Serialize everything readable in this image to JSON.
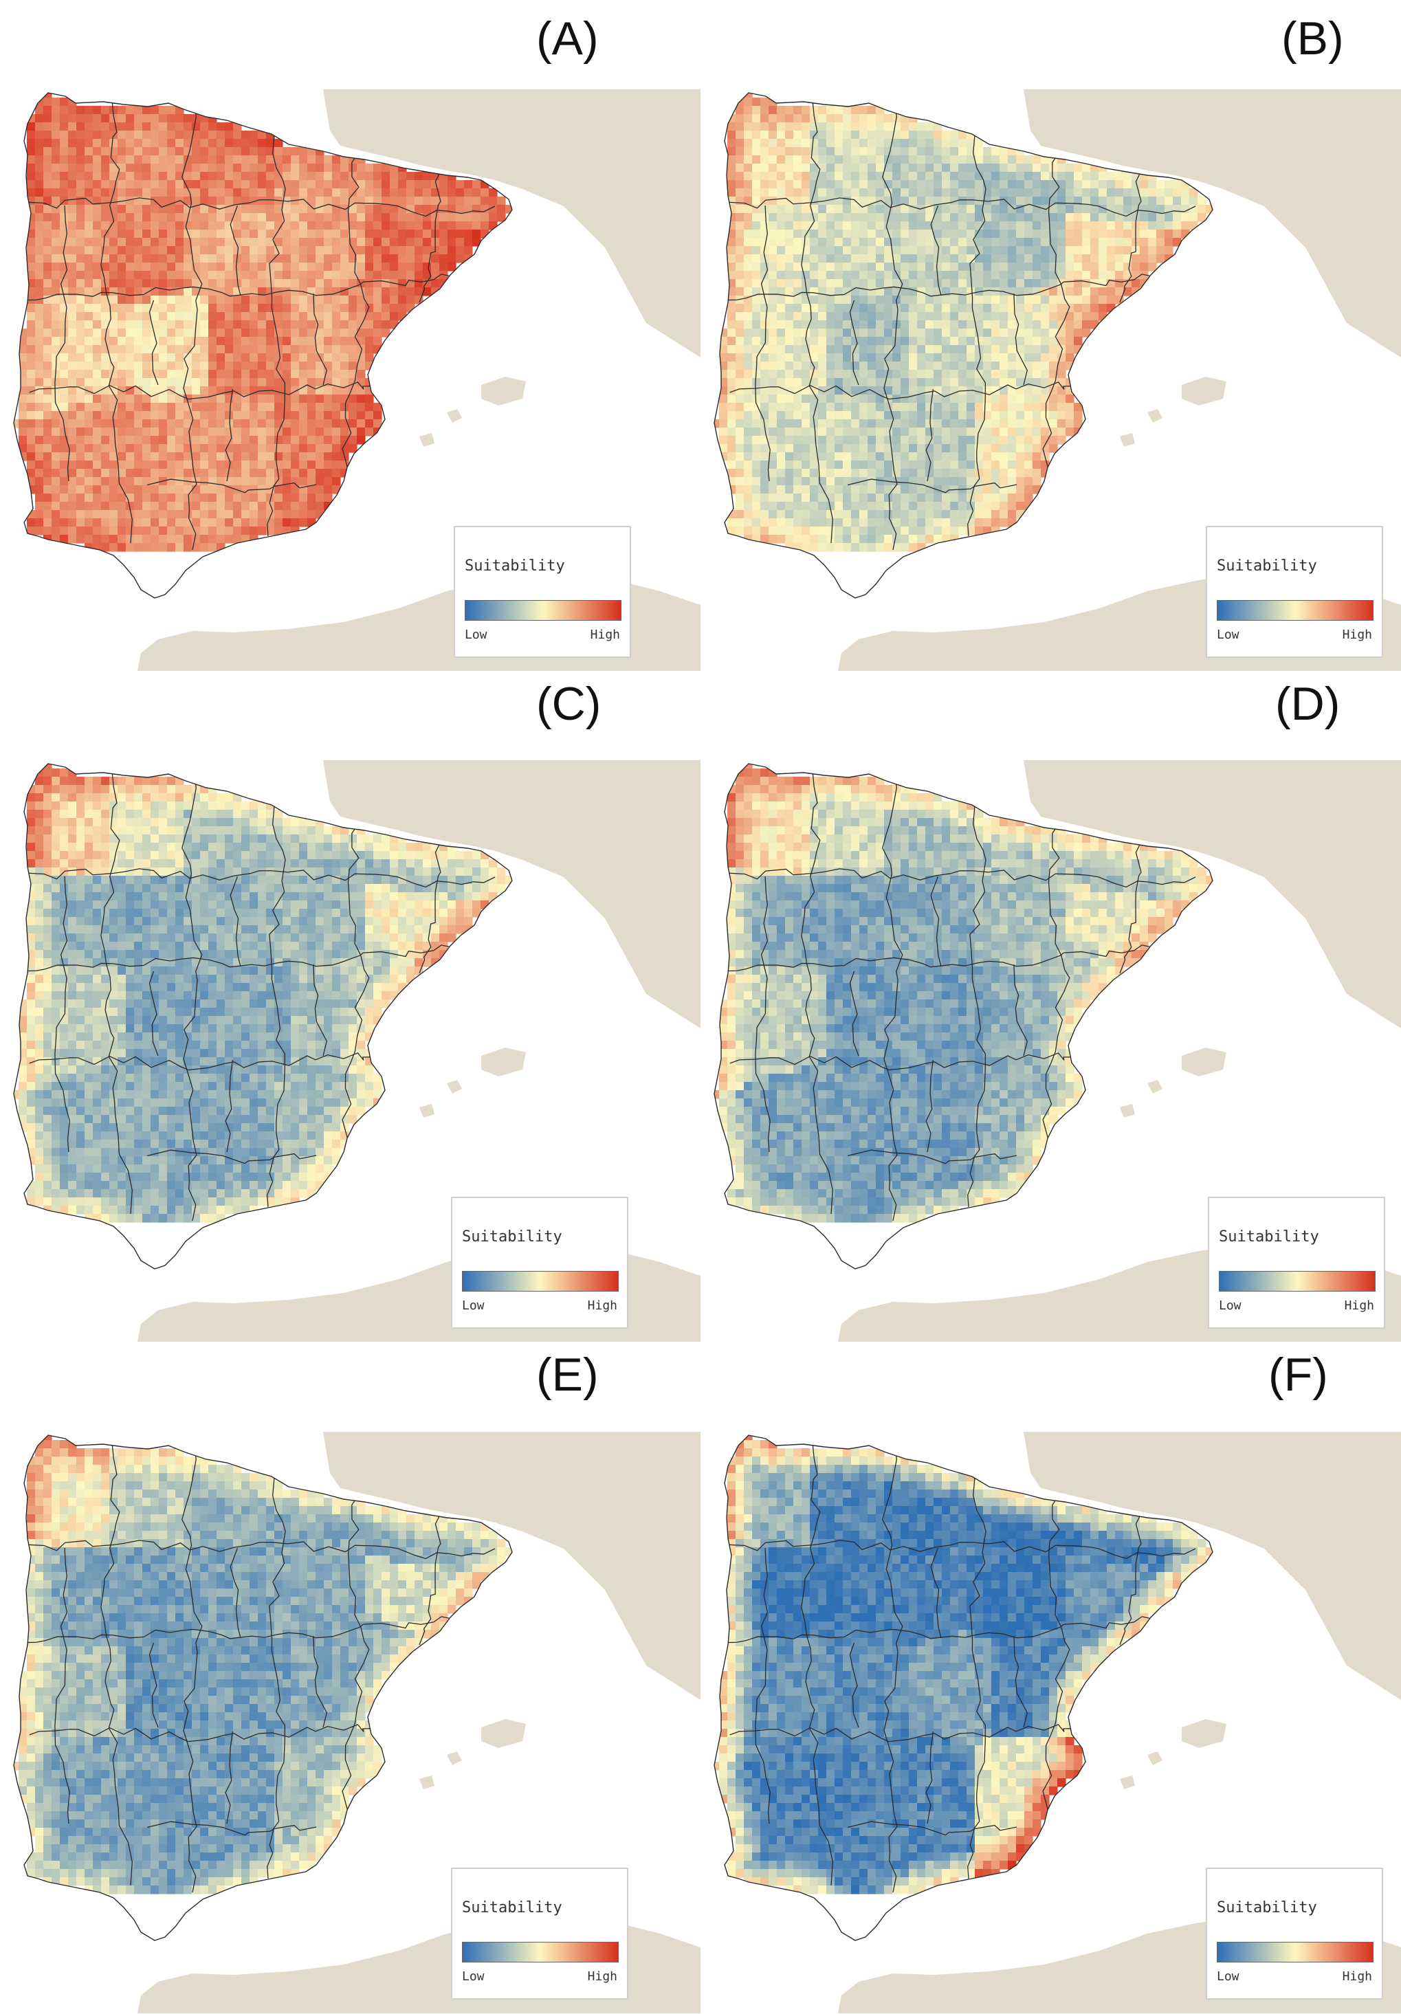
{
  "figure": {
    "land_color": "#e2dacb",
    "border_color": "#2a2a2a",
    "palette": {
      "low": "#2f6fb4",
      "mid": "#fdf6c0",
      "high": "#d7301f"
    },
    "legend": {
      "title": "Suitability",
      "low_label": "Low",
      "high_label": "High"
    }
  },
  "panels": [
    {
      "label": "(A)",
      "overall": 0.74,
      "coast_boost": 0.12,
      "regions": [
        0.8,
        0.75,
        0.8,
        0.7,
        0.78,
        0.72,
        0.8,
        0.68,
        0.7,
        0.85,
        0.6,
        0.55,
        0.8,
        0.7,
        0.78,
        0.75,
        0.72,
        0.8
      ]
    },
    {
      "label": "(B)",
      "overall": 0.42,
      "coast_boost": 0.25,
      "regions": [
        0.55,
        0.4,
        0.35,
        0.3,
        0.35,
        0.45,
        0.4,
        0.38,
        0.32,
        0.55,
        0.45,
        0.3,
        0.4,
        0.45,
        0.6,
        0.4,
        0.35,
        0.5
      ]
    },
    {
      "label": "(C)",
      "overall": 0.3,
      "coast_boost": 0.3,
      "regions": [
        0.6,
        0.45,
        0.3,
        0.28,
        0.32,
        0.25,
        0.22,
        0.25,
        0.28,
        0.5,
        0.35,
        0.2,
        0.22,
        0.3,
        0.35,
        0.25,
        0.22,
        0.3
      ]
    },
    {
      "label": "(D)",
      "overall": 0.26,
      "coast_boost": 0.3,
      "regions": [
        0.55,
        0.4,
        0.3,
        0.32,
        0.3,
        0.22,
        0.2,
        0.22,
        0.3,
        0.45,
        0.35,
        0.18,
        0.18,
        0.25,
        0.32,
        0.2,
        0.18,
        0.25
      ]
    },
    {
      "label": "(E)",
      "overall": 0.22,
      "coast_boost": 0.3,
      "regions": [
        0.5,
        0.35,
        0.25,
        0.22,
        0.25,
        0.2,
        0.18,
        0.2,
        0.22,
        0.4,
        0.3,
        0.15,
        0.18,
        0.22,
        0.25,
        0.2,
        0.18,
        0.3
      ]
    },
    {
      "label": "(F)",
      "overall": 0.08,
      "coast_boost": 0.55,
      "regions": [
        0.25,
        0.1,
        0.05,
        0.05,
        0.05,
        0.05,
        0.05,
        0.08,
        0.05,
        0.15,
        0.15,
        0.12,
        0.2,
        0.1,
        0.1,
        0.08,
        0.1,
        0.45
      ]
    }
  ]
}
